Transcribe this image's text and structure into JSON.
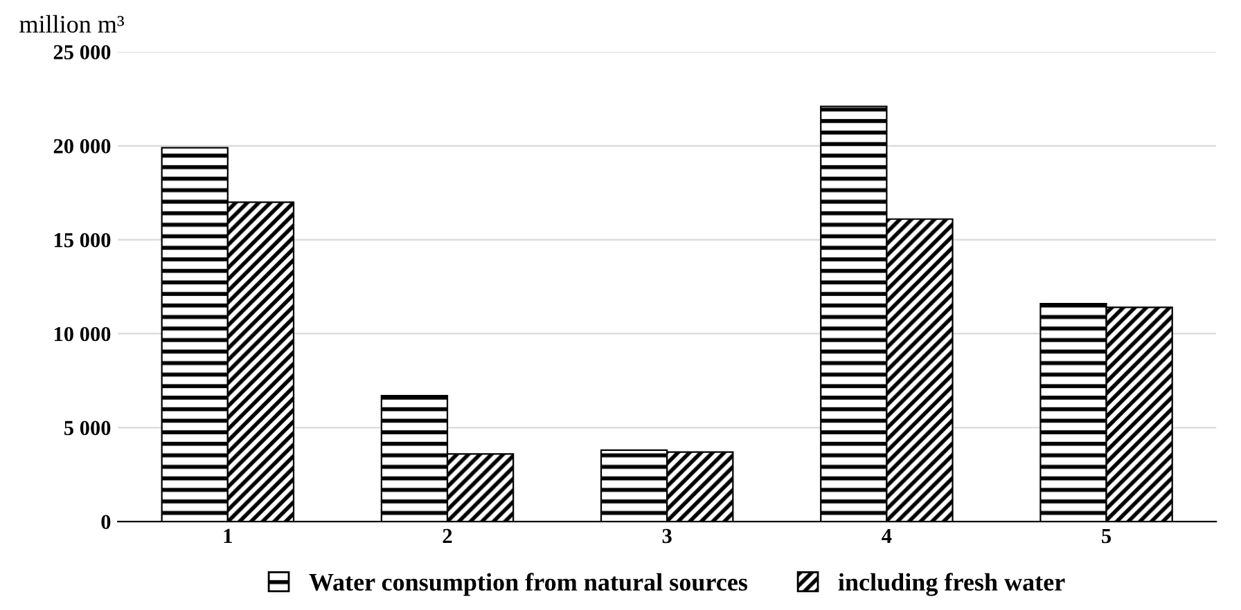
{
  "chart_data": {
    "type": "bar",
    "ylabel": "million m³",
    "categories": [
      "1",
      "2",
      "3",
      "4",
      "5"
    ],
    "series": [
      {
        "name": "Water consumption from natural sources",
        "color": "#000000",
        "values": [
          19900,
          6700,
          3800,
          22100,
          11600
        ]
      },
      {
        "name": "including fresh water",
        "color": "#000000",
        "values": [
          17000,
          3600,
          3700,
          16100,
          11400
        ]
      }
    ],
    "ylim": [
      0,
      25000
    ],
    "yticks": [
      0,
      {
        "value": 5000,
        "label": "5 000"
      },
      {
        "value": 10000,
        "label": "10 000"
      },
      {
        "value": 15000,
        "label": "15 000"
      },
      {
        "value": 20000,
        "label": "20 000"
      },
      {
        "value": 25000,
        "label": "25 000"
      }
    ],
    "grid": "y",
    "legend": "bottom"
  }
}
